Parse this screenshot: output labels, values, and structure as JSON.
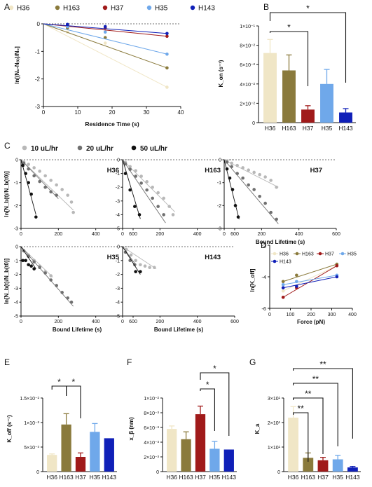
{
  "chart_data": [
    {
      "panel": "A",
      "type": "scatter",
      "legend": [
        {
          "name": "H36",
          "color": "#f0e6c6"
        },
        {
          "name": "H163",
          "color": "#8a7a3c"
        },
        {
          "name": "H37",
          "color": "#a01a1a"
        },
        {
          "name": "H35",
          "color": "#6fa8ea"
        },
        {
          "name": "H143",
          "color": "#1020b8"
        }
      ],
      "xlabel": "Residence Time (s)",
      "ylabel": "ln[(N₀-N₍ₜ₎)/N₀]",
      "xlim": [
        0,
        40
      ],
      "ylim": [
        -3,
        0
      ],
      "xticks": [
        "0",
        "10",
        "20",
        "30",
        "40"
      ],
      "yticks": [
        "0",
        "-1",
        "-2",
        "-3"
      ],
      "x": [
        7,
        18,
        36
      ],
      "series": [
        {
          "name": "H36",
          "color": "#f0e6c6",
          "values": [
            -0.3,
            -0.7,
            -2.3
          ]
        },
        {
          "name": "H163",
          "color": "#8a7a3c",
          "values": [
            -0.15,
            -0.5,
            -1.6
          ]
        },
        {
          "name": "H37",
          "color": "#a01a1a",
          "values": [
            -0.05,
            -0.15,
            -0.45
          ]
        },
        {
          "name": "H35",
          "color": "#6fa8ea",
          "values": [
            -0.1,
            -0.3,
            -1.1
          ]
        },
        {
          "name": "H143",
          "color": "#1020b8",
          "values": [
            -0.02,
            -0.1,
            -0.35
          ]
        }
      ]
    },
    {
      "panel": "B",
      "type": "bar",
      "ylabel": "K_on (s⁻¹)",
      "ylim": [
        0,
        0.1
      ],
      "yticks": [
        "0",
        "2×10⁻²",
        "4×10⁻²",
        "6×10⁻²",
        "8×10⁻²",
        "1×10⁻¹"
      ],
      "categories": [
        "H36",
        "H163",
        "H37",
        "H35",
        "H143"
      ],
      "values": [
        0.072,
        0.054,
        0.0135,
        0.04,
        0.0105
      ],
      "errors": [
        0.014,
        0.016,
        0.004,
        0.015,
        0.004
      ],
      "colors": [
        "#f0e6c6",
        "#8a7a3c",
        "#a01a1a",
        "#6fa8ea",
        "#1020b8"
      ],
      "significance": [
        {
          "from": "H36",
          "to": "H37",
          "label": "*"
        },
        {
          "from": "H36",
          "to": "H143",
          "label": "*"
        }
      ]
    },
    {
      "panel": "C",
      "type": "scatter",
      "legend": [
        {
          "name": "10 uL/hr",
          "color": "#b8b8b8"
        },
        {
          "name": "20 uL/hr",
          "color": "#707070"
        },
        {
          "name": "50 uL/hr",
          "color": "#111111"
        }
      ],
      "ylabel": "ln[N_b(t)/N_b(t0)]",
      "xlabel": "Bound Lifetime (s)",
      "xticks": [
        "0",
        "200",
        "400",
        "600"
      ],
      "subplots": [
        {
          "name": "H36",
          "xlim": [
            0,
            600
          ],
          "ylim": [
            -3,
            0
          ],
          "yticks": [
            "0",
            "-1",
            "-2",
            "-3"
          ],
          "series": [
            {
              "name": "10 uL/hr",
              "x": [
                15,
                40,
                70,
                100,
                130,
                160,
                190,
                220,
                250,
                270,
                280
              ],
              "y": [
                -0.1,
                -0.2,
                -0.35,
                -0.5,
                -0.7,
                -0.9,
                -1.1,
                -1.3,
                -1.55,
                -1.85,
                -2.3
              ],
              "fit": [
                [
                  0,
                  0
                ],
                [
                  280,
                  -2.2
                ]
              ]
            },
            {
              "name": "20 uL/hr",
              "x": [
                15,
                40,
                70,
                100,
                130,
                160,
                190
              ],
              "y": [
                -0.15,
                -0.4,
                -0.7,
                -0.95,
                -1.2,
                -1.4,
                -1.55
              ],
              "fit": [
                [
                  0,
                  0
                ],
                [
                  200,
                  -1.7
                ]
              ]
            },
            {
              "name": "50 uL/hr",
              "x": [
                10,
                25,
                40,
                55,
                80
              ],
              "y": [
                -0.25,
                -0.6,
                -1.0,
                -1.5,
                -2.5
              ],
              "fit": [
                [
                  0,
                  0
                ],
                [
                  80,
                  -2.4
                ]
              ]
            }
          ]
        },
        {
          "name": "H163",
          "xlim": [
            0,
            600
          ],
          "ylim": [
            -5,
            0
          ],
          "yticks": [
            "0",
            "-1",
            "-2",
            "-3",
            "-4",
            "-5"
          ],
          "series": [
            {
              "name": "10 uL/hr",
              "x": [
                15,
                40,
                70,
                100,
                130,
                160,
                190,
                220,
                250,
                270
              ],
              "y": [
                -0.2,
                -0.5,
                -0.8,
                -1.2,
                -1.6,
                -2.0,
                -2.4,
                -2.8,
                -3.4,
                -4.0
              ],
              "fit": [
                [
                  0,
                  0
                ],
                [
                  280,
                  -3.8
                ]
              ]
            },
            {
              "name": "20 uL/hr",
              "x": [
                15,
                40,
                70,
                100,
                130,
                160,
                190,
                220
              ],
              "y": [
                -0.3,
                -0.7,
                -1.2,
                -1.7,
                -2.2,
                -2.8,
                -3.4,
                -4.0
              ],
              "fit": [
                [
                  0,
                  0
                ],
                [
                  230,
                  -4.6
                ]
              ]
            },
            {
              "name": "50 uL/hr",
              "x": [
                15,
                40,
                65,
                90
              ],
              "y": [
                -1.0,
                -2.2,
                -3.4,
                -4.0
              ],
              "fit": [
                [
                  0,
                  0
                ],
                [
                  95,
                  -4.3
                ]
              ]
            }
          ]
        },
        {
          "name": "H37",
          "xlim": [
            0,
            600
          ],
          "ylim": [
            -3,
            0
          ],
          "yticks": [
            "0",
            "-1",
            "-2",
            "-3"
          ],
          "series": [
            {
              "name": "10 uL/hr",
              "x": [
                15,
                40,
                70,
                100,
                130,
                160,
                190,
                220,
                250,
                280
              ],
              "y": [
                -0.05,
                -0.15,
                -0.25,
                -0.35,
                -0.45,
                -0.55,
                -0.65,
                -0.75,
                -0.9,
                -1.2
              ],
              "fit": [
                [
                  0,
                  0
                ],
                [
                  290,
                  -1.2
                ]
              ]
            },
            {
              "name": "20 uL/hr",
              "x": [
                15,
                40,
                70,
                100,
                130,
                160,
                190,
                220,
                250,
                280
              ],
              "y": [
                -0.1,
                -0.3,
                -0.6,
                -0.8,
                -1.1,
                -1.3,
                -1.6,
                -1.9,
                -2.3,
                -2.6
              ],
              "fit": [
                [
                  0,
                  0
                ],
                [
                  290,
                  -2.8
                ]
              ]
            },
            {
              "name": "50 uL/hr",
              "x": [
                15,
                30,
                45,
                60,
                75
              ],
              "y": [
                -0.4,
                -0.8,
                -1.3,
                -2.0,
                -2.5
              ],
              "fit": [
                [
                  0,
                  0
                ],
                [
                  80,
                  -2.6
                ]
              ]
            }
          ]
        },
        {
          "name": "H35",
          "xlim": [
            0,
            600
          ],
          "ylim": [
            -5,
            0
          ],
          "yticks": [
            "0",
            "-1",
            "-2",
            "-3",
            "-4",
            "-5"
          ],
          "series": [
            {
              "name": "10 uL/hr",
              "x": [
                15,
                40,
                70,
                100,
                130,
                160
              ],
              "y": [
                -0.3,
                -0.6,
                -1.0,
                -1.4,
                -1.8,
                -2.1
              ],
              "fit": [
                [
                  0,
                  0
                ],
                [
                  170,
                  -2.2
                ]
              ]
            },
            {
              "name": "20 uL/hr",
              "x": [
                15,
                40,
                70,
                100,
                130,
                160,
                190,
                220,
                250,
                270
              ],
              "y": [
                -0.3,
                -0.7,
                -1.1,
                -1.5,
                -1.9,
                -2.4,
                -2.8,
                -3.3,
                -3.7,
                -4.0
              ],
              "fit": [
                [
                  0,
                  0
                ],
                [
                  280,
                  -4.3
                ]
              ]
            },
            {
              "name": "50 uL/hr",
              "x": [
                10,
                25,
                40,
                55,
                70
              ],
              "y": [
                -1.0,
                -1.0,
                -1.3,
                -1.4,
                -1.6
              ],
              "fit": [
                [
                  0,
                  0
                ],
                [
                  80,
                  -1.6
                ]
              ]
            }
          ]
        },
        {
          "name": "H143",
          "xlim": [
            0,
            600
          ],
          "ylim": [
            -5,
            0
          ],
          "yticks": [
            "0",
            "-1",
            "-2",
            "-3",
            "-4",
            "-5"
          ],
          "series": [
            {
              "name": "10 uL/hr",
              "x": [
                20,
                45,
                70,
                95,
                120,
                145,
                170
              ],
              "y": [
                -0.2,
                -0.6,
                -1.0,
                -1.3,
                -1.4,
                -1.5,
                -1.5
              ],
              "fit": [
                [
                  0,
                  0
                ],
                [
                  180,
                  -1.6
                ]
              ]
            },
            {
              "name": "20 uL/hr",
              "x": [
                15,
                40,
                65
              ],
              "y": [
                -0.4,
                -1.0,
                -1.3
              ],
              "fit": [
                [
                  0,
                  0
                ],
                [
                  70,
                  -1.3
                ]
              ]
            },
            {
              "name": "50 uL/hr",
              "x": [
                70,
                95
              ],
              "y": [
                -1.8,
                -1.8
              ],
              "fit": [
                [
                  0,
                  0
                ],
                [
                  95,
                  -2.0
                ]
              ]
            }
          ]
        }
      ]
    },
    {
      "panel": "D",
      "type": "scatter",
      "legend": [
        {
          "name": "H36",
          "color": "#f0e6c6"
        },
        {
          "name": "H163",
          "color": "#8a7a3c"
        },
        {
          "name": "H37",
          "color": "#a01a1a"
        },
        {
          "name": "H35",
          "color": "#6fa8ea"
        },
        {
          "name": "H143",
          "color": "#1020b8"
        }
      ],
      "xlabel": "Force (pN)",
      "ylabel": "ln[K_off]",
      "xlim": [
        0,
        400
      ],
      "ylim": [
        -6,
        -2
      ],
      "xticks": [
        "0",
        "100",
        "200",
        "300",
        "400"
      ],
      "yticks": [
        "-2",
        "-4",
        "-6"
      ],
      "x": [
        65,
        130,
        325
      ],
      "series": [
        {
          "name": "H36",
          "color": "#f0e6c6",
          "values": [
            -4.9,
            -4.6,
            -3.3
          ]
        },
        {
          "name": "H163",
          "color": "#8a7a3c",
          "values": [
            -4.3,
            -3.9,
            -3.2
          ]
        },
        {
          "name": "H37",
          "color": "#a01a1a",
          "values": [
            -5.3,
            -4.7,
            -3.3
          ]
        },
        {
          "name": "H35",
          "color": "#6fa8ea",
          "values": [
            -4.5,
            -4.3,
            -3.9
          ]
        },
        {
          "name": "H143",
          "color": "#1020b8",
          "values": [
            -4.7,
            -4.6,
            -4.0
          ]
        }
      ]
    },
    {
      "panel": "E",
      "type": "bar",
      "ylabel": "K_off (s⁻¹)",
      "ylim": [
        0,
        0.015
      ],
      "yticks": [
        "0",
        "5×10⁻³",
        "1×10⁻²",
        "1.5×10⁻²"
      ],
      "categories": [
        "H36",
        "H163",
        "H37",
        "H35",
        "H143"
      ],
      "values": [
        0.0034,
        0.0096,
        0.003,
        0.0081,
        0.0068
      ],
      "errors": [
        0.0002,
        0.0022,
        0.0008,
        0.0017,
        0
      ],
      "colors": [
        "#f0e6c6",
        "#8a7a3c",
        "#a01a1a",
        "#6fa8ea",
        "#1020b8"
      ],
      "significance": [
        {
          "from": "H36",
          "to": "H163",
          "label": "*"
        },
        {
          "from": "H163",
          "to": "H37",
          "label": "*"
        }
      ]
    },
    {
      "panel": "F",
      "type": "bar",
      "ylabel": "x_β (nm)",
      "ylim": [
        0,
        0.01
      ],
      "yticks": [
        "0",
        "2×10⁻³",
        "4×10⁻³",
        "6×10⁻³",
        "8×10⁻³",
        "1×10⁻²"
      ],
      "categories": [
        "H36",
        "H163",
        "H37",
        "H35",
        "H143"
      ],
      "values": [
        0.0058,
        0.0044,
        0.0078,
        0.0031,
        0.003
      ],
      "errors": [
        0.0004,
        0.001,
        0.0011,
        0.001,
        0
      ],
      "colors": [
        "#f0e6c6",
        "#8a7a3c",
        "#a01a1a",
        "#6fa8ea",
        "#1020b8"
      ],
      "significance": [
        {
          "from": "H37",
          "to": "H35",
          "label": "*"
        },
        {
          "from": "H37",
          "to": "H143",
          "label": "*"
        }
      ]
    },
    {
      "panel": "G",
      "type": "bar",
      "ylabel": "K_a",
      "ylim": [
        0,
        30
      ],
      "yticks": [
        "0",
        "1×10¹",
        "2×10¹",
        "3×10¹"
      ],
      "categories": [
        "H36",
        "H163",
        "H37",
        "H35",
        "H143"
      ],
      "values": [
        22,
        5.6,
        4.6,
        5.0,
        1.7
      ],
      "errors": [
        4.5,
        2.0,
        1.2,
        1.6,
        0.4
      ],
      "colors": [
        "#f0e6c6",
        "#8a7a3c",
        "#a01a1a",
        "#6fa8ea",
        "#1020b8"
      ],
      "significance": [
        {
          "from": "H36",
          "to": "H163",
          "label": "**"
        },
        {
          "from": "H36",
          "to": "H37",
          "label": "**"
        },
        {
          "from": "H36",
          "to": "H35",
          "label": "**"
        },
        {
          "from": "H36",
          "to": "H143",
          "label": "**"
        }
      ]
    }
  ]
}
